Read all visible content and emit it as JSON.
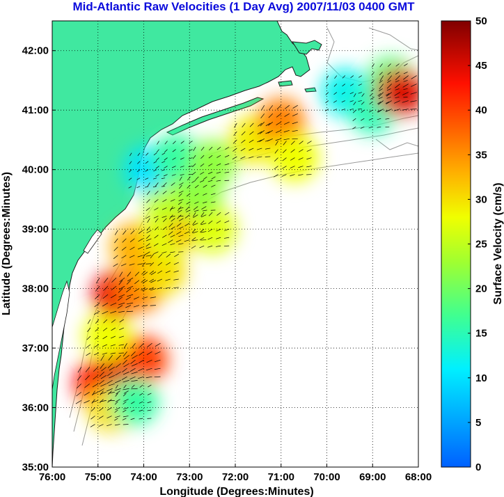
{
  "title": "Mid-Atlantic Raw Velocities (1 Day Avg) 2007/11/03 0400 GMT",
  "map": {
    "xlabel": "Longitude (Degrees:Minutes)",
    "ylabel": "Latitude (Degrees:Minutes)",
    "lon_range": [
      -76,
      -68
    ],
    "lat_range": [
      35,
      42.5
    ],
    "x_ticks": [
      {
        "value": -76,
        "label": "76:00"
      },
      {
        "value": -75,
        "label": "75:00"
      },
      {
        "value": -74,
        "label": "74:00"
      },
      {
        "value": -73,
        "label": "73:00"
      },
      {
        "value": -72,
        "label": "72:00"
      },
      {
        "value": -71,
        "label": "71:00"
      },
      {
        "value": -70,
        "label": "70:00"
      },
      {
        "value": -69,
        "label": "69:00"
      },
      {
        "value": -68,
        "label": "68:00"
      }
    ],
    "y_ticks": [
      {
        "value": 35,
        "label": "35:00"
      },
      {
        "value": 36,
        "label": "36:00"
      },
      {
        "value": 37,
        "label": "37:00"
      },
      {
        "value": 38,
        "label": "38:00"
      },
      {
        "value": 39,
        "label": "39:00"
      },
      {
        "value": 40,
        "label": "40:00"
      },
      {
        "value": 41,
        "label": "41:00"
      },
      {
        "value": 42,
        "label": "42:00"
      }
    ],
    "grid": true,
    "colors": {
      "land": "#40e8a0",
      "ocean": "#ffffff",
      "coast": "#1a1a1a",
      "bathymetry": "#9a9a9a",
      "arrows": "#000000"
    }
  },
  "colorbar": {
    "label": "Surface Velocity (cm/s)",
    "min": 0,
    "max": 50,
    "ticks": [
      {
        "value": 0,
        "label": "0"
      },
      {
        "value": 5,
        "label": "5"
      },
      {
        "value": 10,
        "label": "10"
      },
      {
        "value": 15,
        "label": "15"
      },
      {
        "value": 20,
        "label": "20"
      },
      {
        "value": 25,
        "label": "25"
      },
      {
        "value": 30,
        "label": "30"
      },
      {
        "value": 35,
        "label": "35"
      },
      {
        "value": 40,
        "label": "40"
      },
      {
        "value": 45,
        "label": "45"
      },
      {
        "value": 50,
        "label": "50"
      }
    ],
    "colormap": "jet"
  },
  "velocity_patches": [
    {
      "lon": -75.0,
      "lat": 36.4,
      "speed": 43
    },
    {
      "lon": -74.5,
      "lat": 36.6,
      "speed": 45
    },
    {
      "lon": -74.0,
      "lat": 36.8,
      "speed": 40
    },
    {
      "lon": -74.7,
      "lat": 36.0,
      "speed": 30
    },
    {
      "lon": -74.2,
      "lat": 36.1,
      "speed": 16
    },
    {
      "lon": -74.8,
      "lat": 37.2,
      "speed": 28
    },
    {
      "lon": -74.6,
      "lat": 37.9,
      "speed": 44
    },
    {
      "lon": -74.1,
      "lat": 38.0,
      "speed": 36
    },
    {
      "lon": -73.6,
      "lat": 38.3,
      "speed": 30
    },
    {
      "lon": -74.2,
      "lat": 38.7,
      "speed": 33
    },
    {
      "lon": -73.5,
      "lat": 38.9,
      "speed": 27
    },
    {
      "lon": -73.0,
      "lat": 39.1,
      "speed": 33
    },
    {
      "lon": -72.5,
      "lat": 39.0,
      "speed": 27
    },
    {
      "lon": -73.5,
      "lat": 39.5,
      "speed": 25
    },
    {
      "lon": -72.8,
      "lat": 39.6,
      "speed": 22
    },
    {
      "lon": -73.9,
      "lat": 40.0,
      "speed": 10
    },
    {
      "lon": -73.3,
      "lat": 40.2,
      "speed": 16
    },
    {
      "lon": -72.5,
      "lat": 40.1,
      "speed": 22
    },
    {
      "lon": -71.6,
      "lat": 40.5,
      "speed": 29
    },
    {
      "lon": -71.0,
      "lat": 40.8,
      "speed": 36
    },
    {
      "lon": -70.7,
      "lat": 40.2,
      "speed": 28
    },
    {
      "lon": -69.6,
      "lat": 41.3,
      "speed": 12
    },
    {
      "lon": -69.0,
      "lat": 41.0,
      "speed": 15
    },
    {
      "lon": -68.6,
      "lat": 41.5,
      "speed": 18
    },
    {
      "lon": -68.4,
      "lat": 41.3,
      "speed": 45
    }
  ]
}
